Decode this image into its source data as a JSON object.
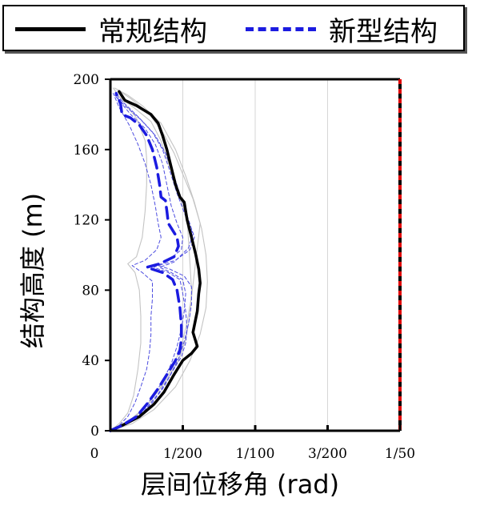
{
  "chart_data": {
    "type": "line",
    "xlabel": "层间位移角 (rad)",
    "ylabel": "结构高度 (m)",
    "xlim": [
      0,
      0.02
    ],
    "ylim": [
      0,
      200
    ],
    "x_ticks": [
      {
        "v": 0,
        "label": "0"
      },
      {
        "v": 0.005,
        "label": "1/200"
      },
      {
        "v": 0.01,
        "label": "1/100"
      },
      {
        "v": 0.015,
        "label": "3/200"
      },
      {
        "v": 0.02,
        "label": "1/50"
      }
    ],
    "y_ticks": [
      {
        "v": 0,
        "label": "0"
      },
      {
        "v": 40,
        "label": "40"
      },
      {
        "v": 80,
        "label": "80"
      },
      {
        "v": 120,
        "label": "120"
      },
      {
        "v": 160,
        "label": "160"
      },
      {
        "v": 200,
        "label": "200"
      }
    ],
    "grid": true,
    "legend_position": "top",
    "limit_line": {
      "x": 0.02,
      "color": "#e00000"
    },
    "series": [
      {
        "name": "常规结构",
        "style": "solid",
        "color": "#000000",
        "width": 3.5,
        "points": [
          [
            0,
            0
          ],
          [
            0.0008,
            3
          ],
          [
            0.002,
            8
          ],
          [
            0.003,
            15
          ],
          [
            0.0037,
            22
          ],
          [
            0.0044,
            32
          ],
          [
            0.005,
            40
          ],
          [
            0.0056,
            44
          ],
          [
            0.006,
            48
          ],
          [
            0.0057,
            56
          ],
          [
            0.0059,
            64
          ],
          [
            0.006,
            68
          ],
          [
            0.0061,
            78
          ],
          [
            0.0062,
            84
          ],
          [
            0.0061,
            92
          ],
          [
            0.0059,
            100
          ],
          [
            0.0056,
            110
          ],
          [
            0.0053,
            120
          ],
          [
            0.0051,
            130
          ],
          [
            0.0048,
            133
          ],
          [
            0.0045,
            140
          ],
          [
            0.0042,
            150
          ],
          [
            0.0039,
            160
          ],
          [
            0.0036,
            168
          ],
          [
            0.0033,
            175
          ],
          [
            0.0028,
            180
          ],
          [
            0.0018,
            185
          ],
          [
            0.001,
            188
          ],
          [
            0.0006,
            193
          ]
        ]
      },
      {
        "name": "新型结构",
        "style": "dashed",
        "color": "#1b1be0",
        "width": 3.5,
        "points": [
          [
            0,
            0
          ],
          [
            0.0008,
            3
          ],
          [
            0.0018,
            8
          ],
          [
            0.0026,
            16
          ],
          [
            0.0033,
            24
          ],
          [
            0.0039,
            32
          ],
          [
            0.0045,
            40
          ],
          [
            0.0048,
            46
          ],
          [
            0.0049,
            52
          ],
          [
            0.0049,
            60
          ],
          [
            0.0048,
            70
          ],
          [
            0.0046,
            80
          ],
          [
            0.0043,
            86
          ],
          [
            0.0036,
            90
          ],
          [
            0.0025,
            93
          ],
          [
            0.0034,
            95
          ],
          [
            0.0044,
            99
          ],
          [
            0.0047,
            105
          ],
          [
            0.0046,
            110
          ],
          [
            0.004,
            118
          ],
          [
            0.0039,
            125
          ],
          [
            0.0038,
            131
          ],
          [
            0.0035,
            133
          ],
          [
            0.0034,
            140
          ],
          [
            0.0032,
            150
          ],
          [
            0.0029,
            160
          ],
          [
            0.0025,
            168
          ],
          [
            0.002,
            174
          ],
          [
            0.0014,
            178
          ],
          [
            0.0008,
            180
          ],
          [
            0.0007,
            186
          ],
          [
            0.0004,
            192
          ]
        ]
      },
      {
        "name": "",
        "style": "thin",
        "color": "#c4c4c4",
        "width": 1.1,
        "points": [
          [
            0,
            0
          ],
          [
            0.0015,
            4
          ],
          [
            0.003,
            12
          ],
          [
            0.0045,
            25
          ],
          [
            0.0055,
            40
          ],
          [
            0.0062,
            55
          ],
          [
            0.0066,
            70
          ],
          [
            0.0067,
            85
          ],
          [
            0.0066,
            100
          ],
          [
            0.0063,
            115
          ],
          [
            0.0058,
            130
          ],
          [
            0.0052,
            145
          ],
          [
            0.0045,
            160
          ],
          [
            0.0035,
            175
          ],
          [
            0.0022,
            185
          ],
          [
            0.0012,
            191
          ],
          [
            0.0003,
            195
          ]
        ]
      },
      {
        "name": "",
        "style": "thin",
        "color": "#c4c4c4",
        "width": 1.1,
        "points": [
          [
            0,
            0
          ],
          [
            0.0006,
            4
          ],
          [
            0.0012,
            10
          ],
          [
            0.0016,
            20
          ],
          [
            0.0019,
            35
          ],
          [
            0.0021,
            50
          ],
          [
            0.0021,
            65
          ],
          [
            0.002,
            80
          ],
          [
            0.0017,
            90
          ],
          [
            0.0012,
            95
          ],
          [
            0.0018,
            99
          ],
          [
            0.0022,
            110
          ],
          [
            0.0024,
            125
          ],
          [
            0.0025,
            140
          ],
          [
            0.0025,
            155
          ],
          [
            0.0024,
            165
          ],
          [
            0.0018,
            178
          ],
          [
            0.0008,
            188
          ],
          [
            0.0002,
            195
          ]
        ]
      },
      {
        "name": "",
        "style": "thin",
        "color": "#c4c4c4",
        "width": 1.1,
        "points": [
          [
            0,
            0
          ],
          [
            0.0012,
            5
          ],
          [
            0.0026,
            15
          ],
          [
            0.0038,
            28
          ],
          [
            0.0047,
            40
          ],
          [
            0.0052,
            52
          ],
          [
            0.0055,
            66
          ],
          [
            0.0056,
            80
          ],
          [
            0.0055,
            95
          ],
          [
            0.0054,
            108
          ],
          [
            0.0053,
            120
          ],
          [
            0.0047,
            135
          ],
          [
            0.0041,
            150
          ],
          [
            0.0035,
            165
          ],
          [
            0.0028,
            176
          ],
          [
            0.0016,
            184
          ],
          [
            0.0006,
            190
          ]
        ]
      },
      {
        "name": "",
        "style": "thin",
        "color": "#c4c4c4",
        "width": 1.1,
        "points": [
          [
            0,
            0
          ],
          [
            0.001,
            4
          ],
          [
            0.0023,
            12
          ],
          [
            0.0034,
            24
          ],
          [
            0.0043,
            36
          ],
          [
            0.0049,
            48
          ],
          [
            0.0053,
            62
          ],
          [
            0.0056,
            76
          ],
          [
            0.0058,
            90
          ],
          [
            0.006,
            104
          ],
          [
            0.0062,
            118
          ],
          [
            0.0057,
            132
          ],
          [
            0.005,
            146
          ],
          [
            0.0044,
            158
          ],
          [
            0.0036,
            170
          ],
          [
            0.0026,
            181
          ],
          [
            0.0014,
            189
          ],
          [
            0.0005,
            194
          ]
        ]
      },
      {
        "name": "",
        "style": "thin-dashed",
        "color": "#4c4ce0",
        "width": 1,
        "points": [
          [
            0,
            0
          ],
          [
            0.001,
            3
          ],
          [
            0.002,
            8
          ],
          [
            0.0029,
            16
          ],
          [
            0.0037,
            25
          ],
          [
            0.0043,
            34
          ],
          [
            0.0049,
            42
          ],
          [
            0.0052,
            50
          ],
          [
            0.0053,
            58
          ],
          [
            0.0052,
            68
          ],
          [
            0.005,
            78
          ],
          [
            0.0048,
            86
          ],
          [
            0.004,
            90
          ],
          [
            0.003,
            93
          ],
          [
            0.004,
            97
          ],
          [
            0.0049,
            103
          ],
          [
            0.005,
            110
          ],
          [
            0.0046,
            118
          ],
          [
            0.0042,
            128
          ],
          [
            0.0039,
            140
          ],
          [
            0.0036,
            152
          ],
          [
            0.0031,
            163
          ],
          [
            0.0024,
            172
          ],
          [
            0.0014,
            180
          ],
          [
            0.0004,
            190
          ]
        ]
      },
      {
        "name": "",
        "style": "thin-dashed",
        "color": "#4c4ce0",
        "width": 1,
        "points": [
          [
            0,
            0
          ],
          [
            0.0006,
            3
          ],
          [
            0.0012,
            8
          ],
          [
            0.0017,
            16
          ],
          [
            0.0021,
            25
          ],
          [
            0.0025,
            35
          ],
          [
            0.0027,
            45
          ],
          [
            0.0028,
            55
          ],
          [
            0.0028,
            65
          ],
          [
            0.0029,
            75
          ],
          [
            0.0029,
            85
          ],
          [
            0.0022,
            90
          ],
          [
            0.0015,
            94
          ],
          [
            0.0024,
            97
          ],
          [
            0.0032,
            103
          ],
          [
            0.0035,
            110
          ],
          [
            0.0033,
            118
          ],
          [
            0.0031,
            128
          ],
          [
            0.0028,
            140
          ],
          [
            0.0024,
            152
          ],
          [
            0.0019,
            163
          ],
          [
            0.0013,
            174
          ],
          [
            0.0006,
            184
          ],
          [
            0.0002,
            192
          ]
        ]
      },
      {
        "name": "",
        "style": "thin-dashed",
        "color": "#4c4ce0",
        "width": 1,
        "points": [
          [
            0,
            0
          ],
          [
            0.0009,
            3
          ],
          [
            0.0019,
            9
          ],
          [
            0.0028,
            18
          ],
          [
            0.0036,
            28
          ],
          [
            0.0042,
            38
          ],
          [
            0.0046,
            48
          ],
          [
            0.0049,
            58
          ],
          [
            0.0051,
            68
          ],
          [
            0.0052,
            78
          ],
          [
            0.005,
            86
          ],
          [
            0.0042,
            90
          ],
          [
            0.0034,
            93
          ],
          [
            0.0044,
            96
          ],
          [
            0.0054,
            104
          ],
          [
            0.0057,
            112
          ],
          [
            0.0052,
            122
          ],
          [
            0.0046,
            135
          ],
          [
            0.0041,
            148
          ],
          [
            0.0036,
            160
          ],
          [
            0.0029,
            170
          ],
          [
            0.002,
            178
          ],
          [
            0.001,
            186
          ],
          [
            0.0003,
            192
          ]
        ]
      },
      {
        "name": "",
        "style": "thin-dashed",
        "color": "#4c4ce0",
        "width": 1,
        "points": [
          [
            0,
            0
          ],
          [
            0.0011,
            4
          ],
          [
            0.0023,
            11
          ],
          [
            0.0033,
            21
          ],
          [
            0.0041,
            31
          ],
          [
            0.0047,
            41
          ],
          [
            0.0051,
            51
          ],
          [
            0.0054,
            61
          ],
          [
            0.0056,
            72
          ],
          [
            0.0056,
            82
          ],
          [
            0.0051,
            88
          ],
          [
            0.0041,
            92
          ],
          [
            0.0033,
            94
          ],
          [
            0.0045,
            97
          ],
          [
            0.0055,
            103
          ],
          [
            0.0058,
            110
          ],
          [
            0.0054,
            120
          ],
          [
            0.0049,
            132
          ],
          [
            0.0044,
            145
          ],
          [
            0.0038,
            158
          ],
          [
            0.0031,
            168
          ],
          [
            0.0021,
            177
          ],
          [
            0.001,
            185
          ],
          [
            0.0003,
            191
          ]
        ]
      }
    ]
  },
  "colors": {
    "limit_line": "#e00000",
    "axis": "#000000",
    "grid": "#d6d6d6"
  }
}
